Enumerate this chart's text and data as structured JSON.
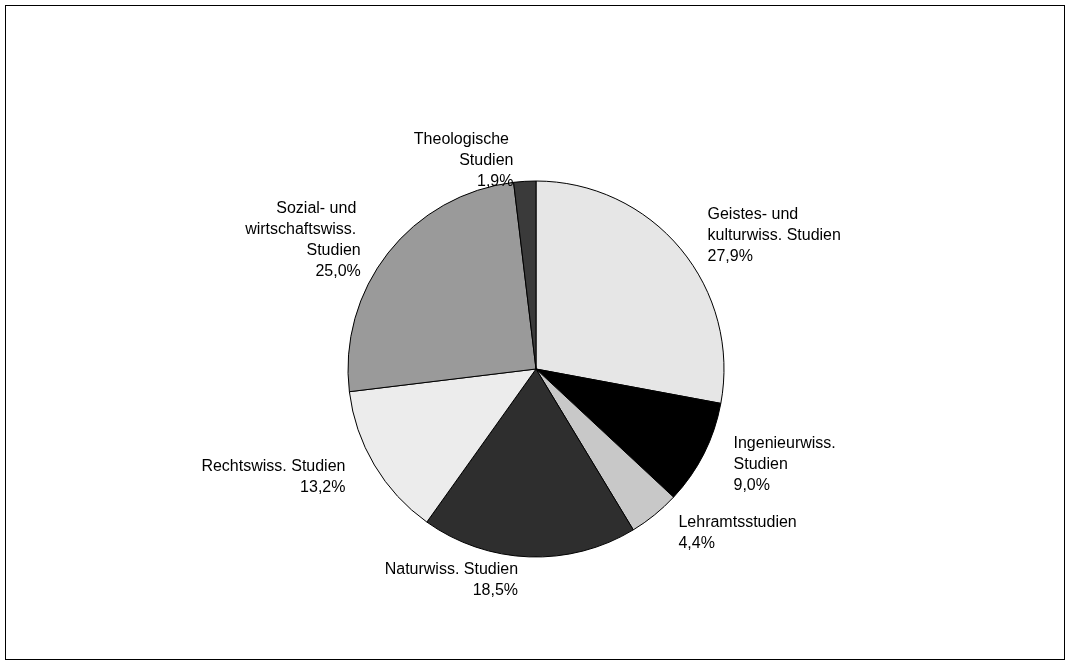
{
  "chart_data": {
    "type": "pie",
    "categories": [
      "Geistes- und kulturwiss. Studien",
      "Ingenieurwiss. Studien",
      "Lehramtsstudien",
      "Naturwiss. Studien",
      "Rechtswiss. Studien",
      "Sozial- und wirtschaftswiss. Studien",
      "Theologische Studien"
    ],
    "values": [
      27.9,
      9.0,
      4.4,
      18.5,
      13.2,
      25.0,
      1.9
    ],
    "value_labels": [
      "27,9%",
      "9,0%",
      "4,4%",
      "18,5%",
      "13,2%",
      "25,0%",
      "1,9%"
    ],
    "colors": [
      "#e6e6e6",
      "#000000",
      "#c8c8c8",
      "#2e2e2e",
      "#ececec",
      "#9a9a9a",
      "#3a3a3a"
    ],
    "legend": false
  }
}
